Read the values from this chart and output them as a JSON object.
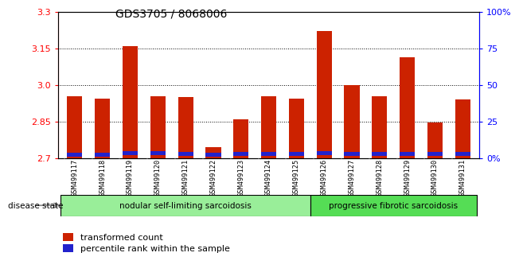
{
  "title": "GDS3705 / 8068006",
  "samples": [
    "GSM499117",
    "GSM499118",
    "GSM499119",
    "GSM499120",
    "GSM499121",
    "GSM499122",
    "GSM499123",
    "GSM499124",
    "GSM499125",
    "GSM499126",
    "GSM499127",
    "GSM499128",
    "GSM499129",
    "GSM499130",
    "GSM499131"
  ],
  "red_values": [
    2.955,
    2.945,
    3.16,
    2.955,
    2.95,
    2.745,
    2.86,
    2.955,
    2.945,
    3.22,
    3.0,
    2.955,
    3.115,
    2.845,
    2.94
  ],
  "blue_bottom": [
    2.706,
    2.706,
    2.714,
    2.712,
    2.711,
    2.707,
    2.711,
    2.711,
    2.711,
    2.714,
    2.711,
    2.711,
    2.711,
    2.711,
    2.711
  ],
  "blue_height": [
    0.018,
    0.018,
    0.016,
    0.016,
    0.016,
    0.016,
    0.016,
    0.016,
    0.016,
    0.016,
    0.016,
    0.016,
    0.016,
    0.016,
    0.016
  ],
  "bar_color": "#cc2200",
  "blue_color": "#2222cc",
  "ymin": 2.7,
  "ymax": 3.3,
  "yticks": [
    2.7,
    2.85,
    3.0,
    3.15,
    3.3
  ],
  "right_ytick_vals": [
    0,
    25,
    50,
    75,
    100
  ],
  "right_labels": [
    "0%",
    "25",
    "50",
    "75",
    "100%"
  ],
  "nodular_count": 9,
  "progressive_count": 6,
  "nodular_label": "nodular self-limiting sarcoidosis",
  "progressive_label": "progressive fibrotic sarcoidosis",
  "disease_state_label": "disease state",
  "legend_red": "transformed count",
  "legend_blue": "percentile rank within the sample",
  "bar_width": 0.55,
  "background_color": "#ffffff",
  "label_bg_color": "#cccccc",
  "nodular_color": "#99ee99",
  "progressive_color": "#55dd55"
}
